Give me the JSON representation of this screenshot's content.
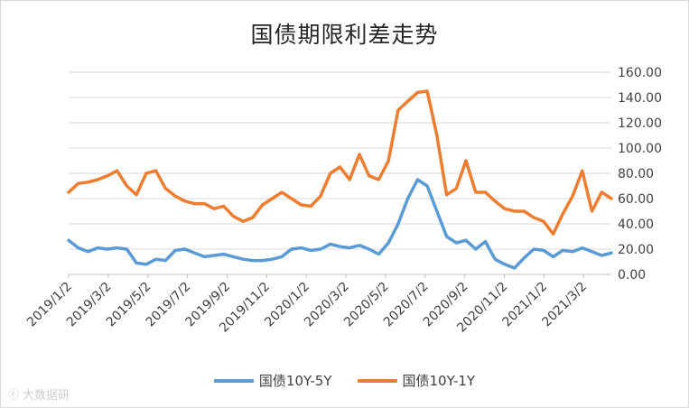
{
  "chart_data": {
    "type": "line",
    "title": "国债期限利差走势",
    "xlabel": "",
    "ylabel": "",
    "ylim": [
      0,
      160
    ],
    "yticks": [
      "0.00",
      "20.00",
      "40.00",
      "60.00",
      "80.00",
      "100.00",
      "120.00",
      "140.00",
      "160.00"
    ],
    "xticks": [
      "2019/1/2",
      "2019/3/2",
      "2019/5/2",
      "2019/7/2",
      "2019/9/2",
      "2019/11/2",
      "2020/1/2",
      "2020/3/2",
      "2020/5/2",
      "2020/7/2",
      "2020/9/2",
      "2020/11/2",
      "2021/1/2",
      "2021/3/2"
    ],
    "grid": "horizontal",
    "legend": "bottom",
    "series": [
      {
        "name": "国债10Y-5Y",
        "color": "#5b9bd5",
        "values": [
          27,
          21,
          18,
          21,
          20,
          21,
          20,
          9,
          8,
          12,
          11,
          19,
          20,
          17,
          14,
          15,
          16,
          14,
          12,
          11,
          11,
          12,
          14,
          20,
          21,
          19,
          20,
          24,
          22,
          21,
          23,
          20,
          16,
          25,
          40,
          60,
          75,
          70,
          50,
          30,
          25,
          27,
          20,
          26,
          12,
          8,
          5,
          13,
          20,
          19,
          14,
          19,
          18,
          21,
          18,
          15,
          17
        ]
      },
      {
        "name": "国债10Y-1Y",
        "color": "#ed7d31",
        "values": [
          65,
          72,
          73,
          75,
          78,
          82,
          70,
          63,
          80,
          82,
          68,
          62,
          58,
          56,
          56,
          52,
          54,
          46,
          42,
          45,
          55,
          60,
          65,
          60,
          55,
          54,
          62,
          80,
          85,
          75,
          95,
          78,
          75,
          90,
          130,
          137,
          144,
          145,
          110,
          63,
          68,
          90,
          65,
          65,
          58,
          52,
          50,
          50,
          45,
          42,
          32,
          48,
          62,
          82,
          50,
          65,
          60
        ]
      }
    ]
  },
  "watermark": "大数据研"
}
